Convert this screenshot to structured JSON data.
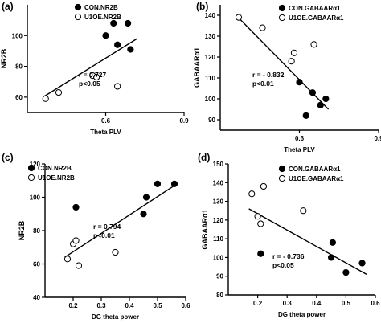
{
  "chart_data": [
    {
      "panel": "(a)",
      "type": "scatter",
      "xlabel": "Theta PLV",
      "ylabel": "NR2B",
      "xlim": [
        0.3,
        0.9
      ],
      "ylim": [
        50,
        120
      ],
      "xticks": [
        "0.6",
        "0.9"
      ],
      "yticks": [
        "60",
        "80",
        "100"
      ],
      "legend": "top-right",
      "series": [
        {
          "name": "CON.NR2B",
          "marker": "filled",
          "x": [
            0.6,
            0.63,
            0.645,
            0.685,
            0.695
          ],
          "y": [
            100,
            108,
            94,
            108,
            91
          ]
        },
        {
          "name": "U1OE.NR2B",
          "marker": "open",
          "x": [
            0.37,
            0.42,
            0.55,
            0.565,
            0.645
          ],
          "y": [
            59,
            63,
            74,
            73,
            67
          ]
        }
      ],
      "fit": {
        "x": [
          0.36,
          0.72
        ],
        "y": [
          60,
          98
        ]
      },
      "stats": [
        "r = 0.727",
        "p<0.05"
      ]
    },
    {
      "panel": "(b)",
      "type": "scatter",
      "xlabel": "Theta PLV",
      "ylabel": "GABAARα1",
      "xlim": [
        0.3,
        0.9
      ],
      "ylim": [
        85,
        145
      ],
      "xticks": [
        "0.6",
        "0.9"
      ],
      "yticks": [
        "90",
        "100",
        "110",
        "120",
        "130",
        "140"
      ],
      "legend": "top-right",
      "series": [
        {
          "name": "CON.GABAARα1",
          "marker": "filled",
          "x": [
            0.6,
            0.625,
            0.65,
            0.68,
            0.7
          ],
          "y": [
            108,
            92,
            103,
            97,
            100
          ]
        },
        {
          "name": "U1OE.GABAARα1",
          "marker": "open",
          "x": [
            0.37,
            0.46,
            0.57,
            0.58,
            0.655
          ],
          "y": [
            139,
            134,
            118,
            122,
            126
          ]
        }
      ],
      "fit": {
        "x": [
          0.36,
          0.71
        ],
        "y": [
          140,
          95
        ]
      },
      "stats": [
        "r = - 0.832",
        "p<0.01"
      ]
    },
    {
      "panel": "(c)",
      "type": "scatter",
      "xlabel": "DG theta power",
      "ylabel": "NR2B",
      "xlim": [
        0.1,
        0.6
      ],
      "ylim": [
        40,
        120
      ],
      "xticks": [
        "0.2",
        "0.3",
        "0.4",
        "0.5",
        "0.6"
      ],
      "yticks": [
        "40",
        "60",
        "80",
        "100",
        "120"
      ],
      "legend": "top-right",
      "series": [
        {
          "name": "CON.NR2B",
          "marker": "filled",
          "x": [
            0.21,
            0.45,
            0.46,
            0.5,
            0.56
          ],
          "y": [
            94,
            90,
            100,
            108,
            108
          ]
        },
        {
          "name": "U1OE.NR2B",
          "marker": "open",
          "x": [
            0.18,
            0.2,
            0.21,
            0.22,
            0.35
          ],
          "y": [
            63,
            72,
            74,
            59,
            67
          ]
        }
      ],
      "fit": {
        "x": [
          0.17,
          0.56
        ],
        "y": [
          64,
          107
        ]
      },
      "stats": [
        "r = 0.794",
        "p<0.01"
      ]
    },
    {
      "panel": "(d)",
      "type": "scatter",
      "xlabel": "DG theta power",
      "ylabel": "GABAARα1",
      "xlim": [
        0.1,
        0.6
      ],
      "ylim": [
        80,
        150
      ],
      "xticks": [
        "0.2",
        "0.3",
        "0.4",
        "0.5",
        "0.6"
      ],
      "yticks": [
        "80",
        "90",
        "100",
        "110",
        "120",
        "130",
        "140",
        "150"
      ],
      "legend": "top-right",
      "series": [
        {
          "name": "CON.GABAARα1",
          "marker": "filled",
          "x": [
            0.21,
            0.45,
            0.455,
            0.5,
            0.555
          ],
          "y": [
            102,
            100,
            108,
            92,
            97
          ]
        },
        {
          "name": "U1OE.GABAARα1",
          "marker": "open",
          "x": [
            0.18,
            0.2,
            0.21,
            0.22,
            0.355
          ],
          "y": [
            134,
            122,
            118,
            138,
            125
          ]
        }
      ],
      "fit": {
        "x": [
          0.17,
          0.57
        ],
        "y": [
          126,
          91
        ]
      },
      "stats": [
        "r = - 0.736",
        "p<0.05"
      ]
    }
  ]
}
